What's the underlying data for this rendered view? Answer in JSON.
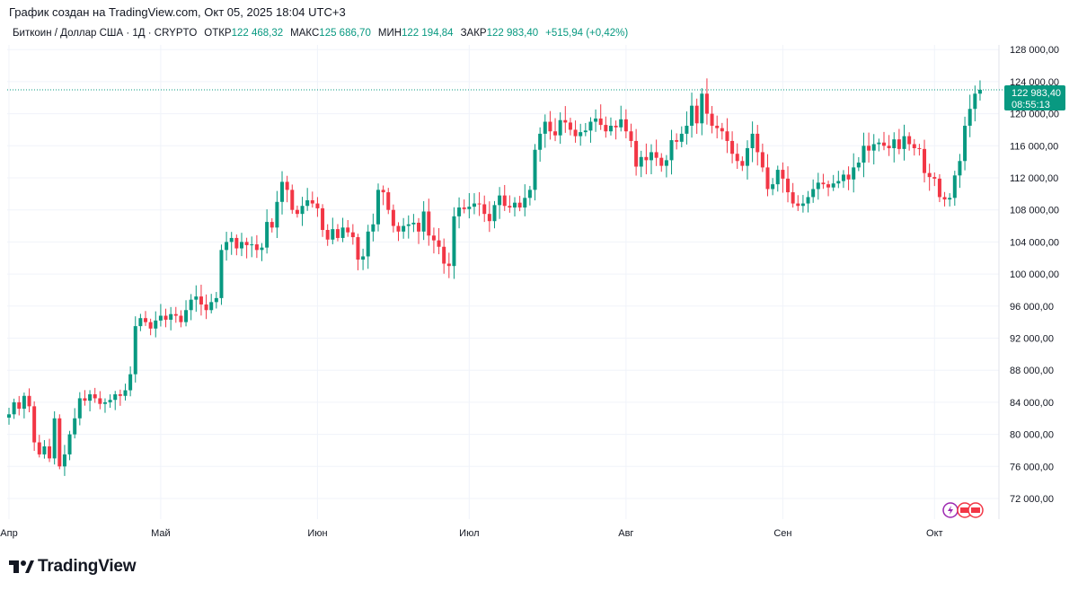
{
  "caption": "График создан на TradingView.com, Окт 05, 2025 18:04 UTC+3",
  "legend": {
    "symbol": "Биткоин / Доллар США · 1Д · CRYPTO",
    "open_label": "ОТКР",
    "open_value": "122 468,32",
    "high_label": "МАКС",
    "high_value": "125 686,70",
    "low_label": "МИН",
    "low_value": "122 194,84",
    "close_label": "ЗАКР",
    "close_value": "122 983,40",
    "change": "+515,94 (+0,42%)"
  },
  "last_price": {
    "price": "122 983,40",
    "countdown": "08:55:13"
  },
  "brand": "TradingView",
  "colors": {
    "up": "#089981",
    "down": "#f23645",
    "grid": "#f0f3fa",
    "badge_bg": "#089981"
  },
  "chart_data": {
    "type": "candlestick",
    "title": "Биткоин / Доллар США · 1Д · CRYPTO",
    "xlabel": "",
    "ylabel": "",
    "ylim": [
      70000,
      129000
    ],
    "y_ticks": [
      {
        "value": 72000,
        "label": "72 000,00"
      },
      {
        "value": 76000,
        "label": "76 000,00"
      },
      {
        "value": 80000,
        "label": "80 000,00"
      },
      {
        "value": 84000,
        "label": "84 000,00"
      },
      {
        "value": 88000,
        "label": "88 000,00"
      },
      {
        "value": 92000,
        "label": "92 000,00"
      },
      {
        "value": 96000,
        "label": "96 000,00"
      },
      {
        "value": 100000,
        "label": "100 000,00"
      },
      {
        "value": 104000,
        "label": "104 000,00"
      },
      {
        "value": 108000,
        "label": "108 000,00"
      },
      {
        "value": 112000,
        "label": "112 000,00"
      },
      {
        "value": 116000,
        "label": "116 000,00"
      },
      {
        "value": 120000,
        "label": "120 000,00"
      },
      {
        "value": 124000,
        "label": "124 000,00"
      },
      {
        "value": 128000,
        "label": "128 000,00"
      }
    ],
    "x_ticks": [
      {
        "day": 0,
        "label": "Апр"
      },
      {
        "day": 30,
        "label": "Май"
      },
      {
        "day": 61,
        "label": "Июн"
      },
      {
        "day": 91,
        "label": "Июл"
      },
      {
        "day": 122,
        "label": "Авг"
      },
      {
        "day": 153,
        "label": "Сен"
      },
      {
        "day": 183,
        "label": "Окт"
      }
    ],
    "first_day_offset": 0,
    "candles_close": [
      82500,
      84000,
      83200,
      84800,
      83500,
      79000,
      77500,
      78500,
      77000,
      82000,
      76000,
      77500,
      80000,
      82000,
      84500,
      84200,
      85000,
      84500,
      83800,
      84000,
      84300,
      85000,
      84800,
      85500,
      87500,
      93500,
      94500,
      94000,
      93200,
      94200,
      94800,
      94300,
      95000,
      94800,
      94000,
      95500,
      96800,
      97200,
      96200,
      95500,
      96500,
      97000,
      103000,
      104000,
      104500,
      103200,
      104000,
      103600,
      103700,
      103000,
      103300,
      106500,
      105800,
      109000,
      111500,
      110500,
      108000,
      107500,
      108500,
      109200,
      108800,
      108200,
      105500,
      104300,
      105600,
      104500,
      105800,
      105200,
      104600,
      101800,
      102200,
      105300,
      106200,
      110500,
      110200,
      108000,
      106000,
      105300,
      106000,
      106200,
      106400,
      105300,
      107800,
      104800,
      104200,
      103400,
      101300,
      101000,
      107200,
      108300,
      108100,
      108400,
      108800,
      108700,
      107500,
      106600,
      108600,
      109800,
      108500,
      108300,
      108900,
      108300,
      109500,
      110500,
      115500,
      117500,
      119000,
      117800,
      117300,
      119200,
      118900,
      118000,
      117200,
      117700,
      117900,
      119000,
      119400,
      118600,
      117800,
      118500,
      118300,
      119300,
      117800,
      116600,
      113400,
      114600,
      114200,
      115200,
      114500,
      113500,
      114200,
      116700,
      116500,
      117500,
      118500,
      121000,
      118800,
      122500,
      120000,
      118500,
      118200,
      117800,
      116600,
      115000,
      114100,
      113500,
      115700,
      117500,
      115200,
      113300,
      110600,
      111200,
      113000,
      111900,
      110200,
      108800,
      108500,
      108800,
      109600,
      110600,
      111400,
      111200,
      110800,
      111300,
      111600,
      112400,
      111800,
      113300,
      113900,
      116000,
      115400,
      116200,
      116400,
      116000,
      115700,
      116800,
      115600,
      117200,
      116200,
      115700,
      115600,
      112600,
      112100,
      111900,
      109600,
      109300,
      109500,
      112300,
      114100,
      118500,
      120600,
      122500,
      122983
    ]
  }
}
